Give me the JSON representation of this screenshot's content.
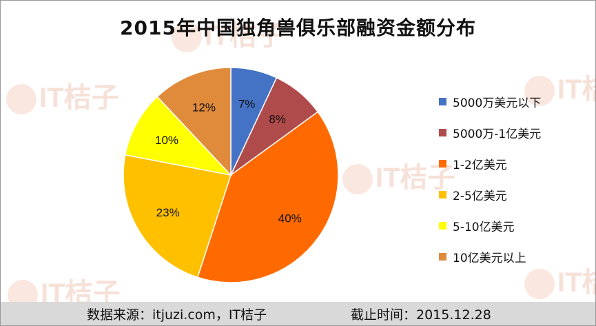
{
  "chart_data": {
    "type": "pie",
    "title": "2015年中国独角兽俱乐部融资金额分布",
    "categories": [
      "5000万美元以下",
      "5000万-1亿美元",
      "1-2亿美元",
      "2-5亿美元",
      "5-10亿美元",
      "10亿美元以上"
    ],
    "values": [
      7,
      8,
      40,
      23,
      10,
      12
    ],
    "value_labels": [
      "7%",
      "8%",
      "40%",
      "23%",
      "10%",
      "12%"
    ],
    "colors": [
      "#4472c4",
      "#b04b4b",
      "#ff6a00",
      "#ffc000",
      "#ffff00",
      "#e08a3c"
    ],
    "legend_position": "right",
    "start_angle": "12 o'clock",
    "direction": "clockwise"
  },
  "watermark_text": "IT桔子",
  "footer": {
    "source": "数据来源：itjuzi.com，IT桔子",
    "date": "截止时间：2015.12.28"
  }
}
